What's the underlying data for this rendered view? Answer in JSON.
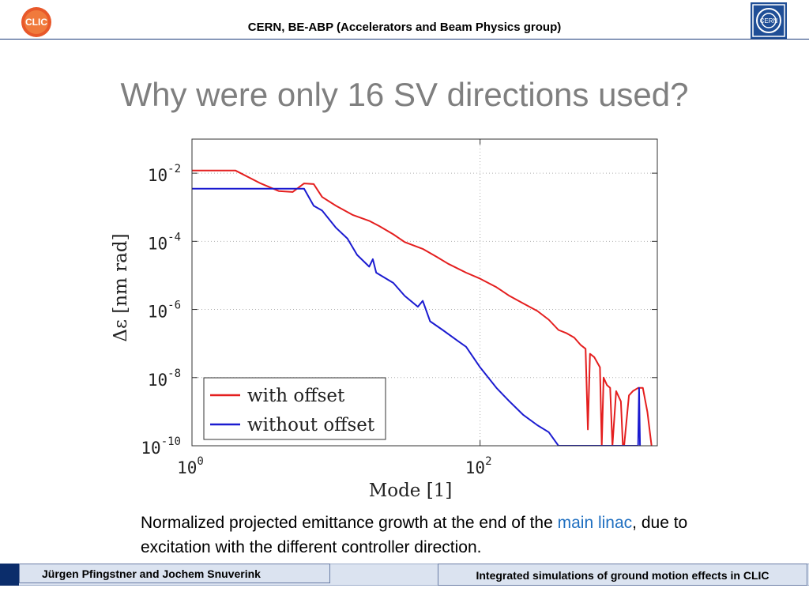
{
  "header": {
    "organization": "CERN, BE-ABP (Accelerators and Beam Physics group)",
    "left_logo_text": "CLIC",
    "right_logo_text": "CERN"
  },
  "slide": {
    "title": "Why were only 16 SV directions used?"
  },
  "caption": {
    "part1": "Normalized projected emittance growth at the end of the ",
    "link_text": "main linac",
    "part2": ", due to excitation with the different controller direction."
  },
  "footer": {
    "authors": "Jürgen Pfingstner and Jochem Snuverink",
    "talk_title": "Integrated simulations of ground motion effects in CLIC"
  },
  "colors": {
    "title": "#7f7f7f",
    "red_series": "#e41e1e",
    "blue_series": "#1b1bd0",
    "footer_accent": "#0b2d6b",
    "link": "#1f6fc0"
  },
  "chart_data": {
    "type": "line",
    "xlabel": "Mode [1]",
    "ylabel": "Δε [nm rad]",
    "xscale": "log",
    "yscale": "log",
    "xlim": [
      1,
      1700
    ],
    "ylim": [
      1e-10,
      0.1
    ],
    "x_ticks": [
      {
        "value": 1,
        "base": "10",
        "exp": "0"
      },
      {
        "value": 100,
        "base": "10",
        "exp": "2"
      }
    ],
    "y_ticks": [
      {
        "value": 0.01,
        "base": "10",
        "exp": "-2"
      },
      {
        "value": 0.0001,
        "base": "10",
        "exp": "-4"
      },
      {
        "value": 1e-06,
        "base": "10",
        "exp": "-6"
      },
      {
        "value": 1e-08,
        "base": "10",
        "exp": "-8"
      },
      {
        "value": 1e-10,
        "base": "10",
        "exp": "-10"
      }
    ],
    "grid": true,
    "legend_position": "bottom-left",
    "series": [
      {
        "name": "with offset",
        "color": "#e41e1e",
        "points": [
          [
            1,
            0.012
          ],
          [
            2,
            0.012
          ],
          [
            3,
            0.005
          ],
          [
            4,
            0.003
          ],
          [
            5,
            0.0028
          ],
          [
            6,
            0.005
          ],
          [
            7,
            0.0048
          ],
          [
            8,
            0.002
          ],
          [
            10,
            0.0011
          ],
          [
            13,
            0.0006
          ],
          [
            17,
            0.0004
          ],
          [
            20,
            0.00028
          ],
          [
            25,
            0.00016
          ],
          [
            30,
            9.5e-05
          ],
          [
            40,
            6e-05
          ],
          [
            50,
            3.5e-05
          ],
          [
            60,
            2.2e-05
          ],
          [
            80,
            1.2e-05
          ],
          [
            100,
            8e-06
          ],
          [
            130,
            4.5e-06
          ],
          [
            160,
            2.5e-06
          ],
          [
            200,
            1.5e-06
          ],
          [
            250,
            9e-07
          ],
          [
            300,
            5e-07
          ],
          [
            350,
            2.5e-07
          ],
          [
            400,
            2e-07
          ],
          [
            450,
            1.5e-07
          ],
          [
            500,
            9e-08
          ],
          [
            540,
            7e-08
          ],
          [
            560,
            3e-10
          ],
          [
            580,
            5e-08
          ],
          [
            620,
            4e-08
          ],
          [
            680,
            2e-08
          ],
          [
            700,
            1e-10
          ],
          [
            720,
            1e-08
          ],
          [
            760,
            6e-09
          ],
          [
            800,
            5e-09
          ],
          [
            830,
            1e-10
          ],
          [
            880,
            4e-09
          ],
          [
            950,
            2e-09
          ],
          [
            980,
            1e-10
          ],
          [
            1000,
            1e-10
          ],
          [
            1080,
            3e-09
          ],
          [
            1150,
            4e-09
          ],
          [
            1250,
            5e-09
          ],
          [
            1350,
            5e-09
          ],
          [
            1450,
            1e-09
          ],
          [
            1550,
            1e-10
          ]
        ]
      },
      {
        "name": "without offset",
        "color": "#1b1bd0",
        "points": [
          [
            1,
            0.0035
          ],
          [
            2,
            0.0035
          ],
          [
            6,
            0.0035
          ],
          [
            7,
            0.0011
          ],
          [
            8,
            0.0008
          ],
          [
            10,
            0.00025
          ],
          [
            12,
            0.00012
          ],
          [
            14,
            4e-05
          ],
          [
            17,
            1.8e-05
          ],
          [
            18,
            3e-05
          ],
          [
            19,
            1.2e-05
          ],
          [
            25,
            6e-06
          ],
          [
            30,
            2.5e-06
          ],
          [
            37,
            1.2e-06
          ],
          [
            40,
            1.8e-06
          ],
          [
            45,
            4.5e-07
          ],
          [
            55,
            2.5e-07
          ],
          [
            70,
            1.2e-07
          ],
          [
            80,
            8e-08
          ],
          [
            100,
            2e-08
          ],
          [
            130,
            5e-09
          ],
          [
            160,
            2e-09
          ],
          [
            200,
            8e-10
          ],
          [
            250,
            4e-10
          ],
          [
            300,
            2.5e-10
          ],
          [
            350,
            1e-10
          ],
          [
            450,
            1e-10
          ],
          [
            500,
            1e-10
          ],
          [
            560,
            1e-10
          ],
          [
            1250,
            1e-10
          ],
          [
            1270,
            5e-09
          ],
          [
            1290,
            1e-10
          ]
        ]
      }
    ]
  }
}
